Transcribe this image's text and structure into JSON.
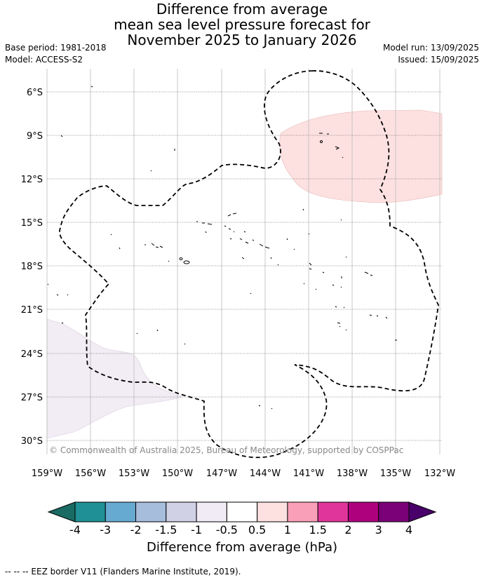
{
  "title": {
    "line1": "Difference from average",
    "line2": "mean sea level pressure forecast for",
    "line3": "November 2025 to January 2026"
  },
  "meta": {
    "base_period": "Base period: 1981-2018",
    "model": "Model: ACCESS-S2",
    "model_run": "Model run: 13/09/2025",
    "issued": "Issued: 15/09/2025"
  },
  "map": {
    "lon_labels": [
      "159°W",
      "156°W",
      "153°W",
      "150°W",
      "147°W",
      "144°W",
      "141°W",
      "138°W",
      "135°W",
      "132°W"
    ],
    "lat_labels": [
      "6°S",
      "9°S",
      "12°S",
      "15°S",
      "18°S",
      "21°S",
      "24°S",
      "27°S",
      "30°S"
    ],
    "copyright": "© Commonwealth of Australia 2025, Bureau of Meteorology, supported by COSPPac",
    "anomaly_regions": [
      {
        "name": "positive anomaly north-east",
        "category": "0.5 to 1",
        "color": "#fde0e0"
      },
      {
        "name": "negative anomaly south-west",
        "category": "-0.5 to -1",
        "color": "#f2ecf4"
      }
    ],
    "eez_border": "EEZ border dashed"
  },
  "colorbar": {
    "ticks": [
      "-4",
      "-3",
      "-2",
      "-1.5",
      "-1",
      "-0.5",
      "0.5",
      "1",
      "1.5",
      "2",
      "3",
      "4"
    ],
    "colors": [
      "#1a6b63",
      "#1f9096",
      "#67aad1",
      "#a6bddb",
      "#d1d1e6",
      "#f0ebf4",
      "#ffffff",
      "#fde0e0",
      "#f99fb8",
      "#e0359a",
      "#ae017e",
      "#7a0177",
      "#49006a"
    ],
    "label": "Difference from average (hPa)"
  },
  "footnote": "--  --  -- EEZ border V11 (Flanders Marine Institute, 2019)."
}
